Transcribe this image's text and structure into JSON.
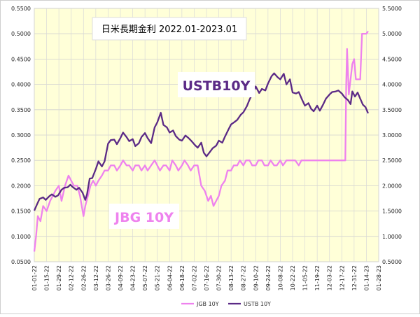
{
  "chart_data": {
    "type": "line",
    "title": "日米長期金利 2022.01-2023.01",
    "annotations": [
      "USTB10Y",
      "JBG 10Y"
    ],
    "left_axis": {
      "ylim": [
        0.05,
        0.55
      ],
      "ticks": [
        "0.0500",
        "0.1000",
        "0.1500",
        "0.2000",
        "0.2500",
        "0.3000",
        "0.3500",
        "0.4000",
        "0.4500",
        "0.5000",
        "0.5500"
      ]
    },
    "right_axis": {
      "ylim": [
        0.5,
        5.5
      ],
      "ticks": [
        "0.5000",
        "1.0000",
        "1.5000",
        "2.0000",
        "2.5000",
        "3.0000",
        "3.5000",
        "4.0000",
        "4.5000",
        "5.0000",
        "5.5000"
      ]
    },
    "x_ticks": [
      "01-01-22",
      "01-15-22",
      "01-29-22",
      "02-12-22",
      "02-26-22",
      "03-12-22",
      "03-26-22",
      "04-09-22",
      "04-23-22",
      "05-07-22",
      "05-21-22",
      "06-04-22",
      "06-18-22",
      "07-02-22",
      "07-16-22",
      "07-30-22",
      "08-13-22",
      "08-27-22",
      "09-10-22",
      "09-24-22",
      "10-08-22",
      "10-22-22",
      "11-05-22",
      "11-19-22",
      "12-03-22",
      "12-17-22",
      "12-31-22",
      "01-14-23",
      "01-28-23"
    ],
    "grid": true,
    "legend_position": "bottom",
    "series": [
      {
        "name": "JGB 10Y",
        "axis": "left",
        "color": "#ee82ee",
        "points": [
          [
            0,
            0.07
          ],
          [
            2,
            0.1
          ],
          [
            4,
            0.14
          ],
          [
            7,
            0.13
          ],
          [
            10,
            0.16
          ],
          [
            14,
            0.15
          ],
          [
            18,
            0.17
          ],
          [
            21,
            0.18
          ],
          [
            24,
            0.19
          ],
          [
            28,
            0.2
          ],
          [
            31,
            0.17
          ],
          [
            35,
            0.2
          ],
          [
            39,
            0.22
          ],
          [
            42,
            0.21
          ],
          [
            45,
            0.2
          ],
          [
            49,
            0.2
          ],
          [
            52,
            0.18
          ],
          [
            56,
            0.14
          ],
          [
            58,
            0.16
          ],
          [
            61,
            0.18
          ],
          [
            64,
            0.2
          ],
          [
            67,
            0.21
          ],
          [
            70,
            0.2
          ],
          [
            73,
            0.21
          ],
          [
            77,
            0.22
          ],
          [
            80,
            0.23
          ],
          [
            84,
            0.23
          ],
          [
            87,
            0.24
          ],
          [
            91,
            0.24
          ],
          [
            94,
            0.23
          ],
          [
            98,
            0.24
          ],
          [
            101,
            0.25
          ],
          [
            105,
            0.24
          ],
          [
            108,
            0.24
          ],
          [
            112,
            0.23
          ],
          [
            115,
            0.24
          ],
          [
            119,
            0.24
          ],
          [
            122,
            0.23
          ],
          [
            126,
            0.24
          ],
          [
            129,
            0.23
          ],
          [
            133,
            0.24
          ],
          [
            137,
            0.25
          ],
          [
            140,
            0.24
          ],
          [
            143,
            0.23
          ],
          [
            147,
            0.24
          ],
          [
            150,
            0.24
          ],
          [
            154,
            0.23
          ],
          [
            157,
            0.25
          ],
          [
            161,
            0.24
          ],
          [
            164,
            0.23
          ],
          [
            168,
            0.24
          ],
          [
            171,
            0.25
          ],
          [
            175,
            0.24
          ],
          [
            178,
            0.23
          ],
          [
            182,
            0.24
          ],
          [
            186,
            0.24
          ],
          [
            190,
            0.2
          ],
          [
            194,
            0.19
          ],
          [
            198,
            0.17
          ],
          [
            201,
            0.18
          ],
          [
            204,
            0.16
          ],
          [
            207,
            0.17
          ],
          [
            210,
            0.18
          ],
          [
            213,
            0.2
          ],
          [
            217,
            0.21
          ],
          [
            220,
            0.23
          ],
          [
            224,
            0.23
          ],
          [
            227,
            0.24
          ],
          [
            231,
            0.24
          ],
          [
            234,
            0.25
          ],
          [
            238,
            0.24
          ],
          [
            241,
            0.25
          ],
          [
            245,
            0.25
          ],
          [
            248,
            0.24
          ],
          [
            252,
            0.24
          ],
          [
            255,
            0.25
          ],
          [
            259,
            0.25
          ],
          [
            262,
            0.24
          ],
          [
            266,
            0.24
          ],
          [
            269,
            0.25
          ],
          [
            273,
            0.24
          ],
          [
            276,
            0.24
          ],
          [
            280,
            0.25
          ],
          [
            283,
            0.24
          ],
          [
            287,
            0.25
          ],
          [
            290,
            0.25
          ],
          [
            294,
            0.25
          ],
          [
            297,
            0.25
          ],
          [
            301,
            0.24
          ],
          [
            304,
            0.25
          ],
          [
            308,
            0.25
          ],
          [
            311,
            0.25
          ],
          [
            315,
            0.25
          ],
          [
            318,
            0.25
          ],
          [
            322,
            0.25
          ],
          [
            325,
            0.25
          ],
          [
            329,
            0.25
          ],
          [
            332,
            0.25
          ],
          [
            336,
            0.25
          ],
          [
            339,
            0.25
          ],
          [
            343,
            0.25
          ],
          [
            346,
            0.25
          ],
          [
            350,
            0.25
          ],
          [
            353,
            0.25
          ],
          [
            354,
            0.25
          ],
          [
            355,
            0.4
          ],
          [
            356,
            0.47
          ],
          [
            358,
            0.38
          ],
          [
            360,
            0.41
          ],
          [
            362,
            0.44
          ],
          [
            364,
            0.45
          ],
          [
            366,
            0.41
          ],
          [
            368,
            0.41
          ],
          [
            371,
            0.41
          ],
          [
            373,
            0.5
          ],
          [
            375,
            0.5
          ],
          [
            378,
            0.5
          ],
          [
            380,
            0.505
          ]
        ]
      },
      {
        "name": "USTB 10Y",
        "axis": "right",
        "color": "#5b2a86",
        "points": [
          [
            0,
            1.51
          ],
          [
            3,
            1.63
          ],
          [
            6,
            1.74
          ],
          [
            10,
            1.77
          ],
          [
            13,
            1.72
          ],
          [
            17,
            1.79
          ],
          [
            20,
            1.83
          ],
          [
            24,
            1.78
          ],
          [
            27,
            1.81
          ],
          [
            31,
            1.92
          ],
          [
            34,
            1.96
          ],
          [
            38,
            1.97
          ],
          [
            41,
            2.02
          ],
          [
            44,
            1.97
          ],
          [
            48,
            1.92
          ],
          [
            51,
            1.96
          ],
          [
            55,
            1.86
          ],
          [
            58,
            1.72
          ],
          [
            60,
            1.83
          ],
          [
            63,
            2.14
          ],
          [
            66,
            2.15
          ],
          [
            70,
            2.33
          ],
          [
            73,
            2.48
          ],
          [
            77,
            2.38
          ],
          [
            80,
            2.48
          ],
          [
            84,
            2.83
          ],
          [
            87,
            2.9
          ],
          [
            91,
            2.91
          ],
          [
            94,
            2.82
          ],
          [
            98,
            2.94
          ],
          [
            101,
            3.05
          ],
          [
            105,
            2.96
          ],
          [
            108,
            2.88
          ],
          [
            112,
            2.92
          ],
          [
            115,
            2.78
          ],
          [
            119,
            2.84
          ],
          [
            122,
            2.96
          ],
          [
            126,
            3.04
          ],
          [
            129,
            2.94
          ],
          [
            133,
            2.84
          ],
          [
            137,
            3.15
          ],
          [
            140,
            3.25
          ],
          [
            144,
            3.44
          ],
          [
            147,
            3.2
          ],
          [
            151,
            3.15
          ],
          [
            154,
            3.05
          ],
          [
            158,
            3.09
          ],
          [
            161,
            2.98
          ],
          [
            165,
            2.91
          ],
          [
            168,
            2.89
          ],
          [
            172,
            2.99
          ],
          [
            175,
            2.95
          ],
          [
            179,
            2.88
          ],
          [
            183,
            2.8
          ],
          [
            186,
            2.75
          ],
          [
            190,
            2.85
          ],
          [
            193,
            2.65
          ],
          [
            196,
            2.58
          ],
          [
            200,
            2.67
          ],
          [
            203,
            2.74
          ],
          [
            207,
            2.79
          ],
          [
            210,
            2.89
          ],
          [
            214,
            2.85
          ],
          [
            217,
            2.97
          ],
          [
            221,
            3.11
          ],
          [
            224,
            3.21
          ],
          [
            228,
            3.26
          ],
          [
            231,
            3.3
          ],
          [
            235,
            3.4
          ],
          [
            238,
            3.45
          ],
          [
            242,
            3.57
          ],
          [
            245,
            3.7
          ],
          [
            249,
            3.84
          ],
          [
            252,
            3.96
          ],
          [
            256,
            3.83
          ],
          [
            259,
            3.91
          ],
          [
            263,
            3.88
          ],
          [
            266,
            4.02
          ],
          [
            270,
            4.16
          ],
          [
            273,
            4.22
          ],
          [
            277,
            4.14
          ],
          [
            280,
            4.1
          ],
          [
            284,
            4.21
          ],
          [
            287,
            4.0
          ],
          [
            291,
            4.1
          ],
          [
            294,
            3.84
          ],
          [
            298,
            3.82
          ],
          [
            301,
            3.85
          ],
          [
            305,
            3.69
          ],
          [
            308,
            3.58
          ],
          [
            312,
            3.63
          ],
          [
            315,
            3.52
          ],
          [
            318,
            3.47
          ],
          [
            322,
            3.58
          ],
          [
            325,
            3.48
          ],
          [
            329,
            3.61
          ],
          [
            332,
            3.72
          ],
          [
            336,
            3.8
          ],
          [
            339,
            3.85
          ],
          [
            343,
            3.86
          ],
          [
            346,
            3.88
          ],
          [
            350,
            3.82
          ],
          [
            353,
            3.75
          ],
          [
            357,
            3.69
          ],
          [
            360,
            3.61
          ],
          [
            362,
            3.86
          ],
          [
            365,
            3.76
          ],
          [
            368,
            3.84
          ],
          [
            371,
            3.72
          ],
          [
            374,
            3.6
          ],
          [
            377,
            3.55
          ],
          [
            380,
            3.43
          ]
        ]
      }
    ]
  }
}
